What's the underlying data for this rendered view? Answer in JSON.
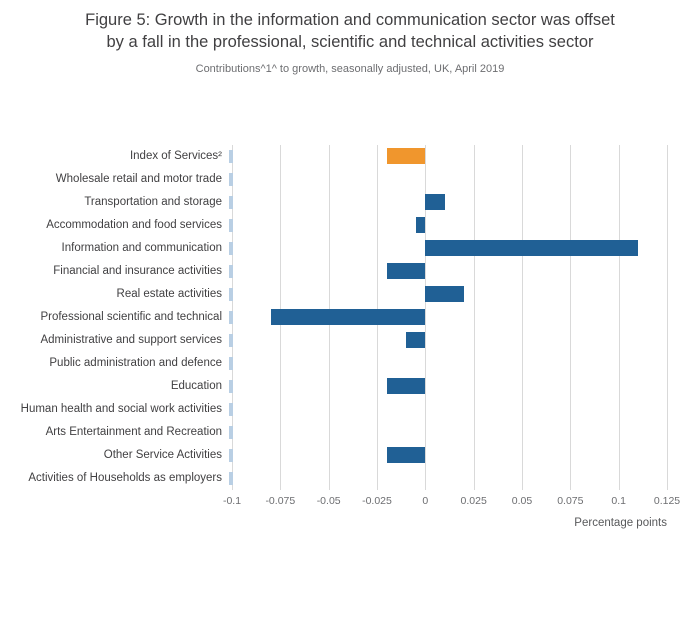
{
  "title": {
    "line1": "Figure 5: Growth in the information and communication sector was offset",
    "line2": "by a fall in the professional, scientific and technical activities sector"
  },
  "subtitle": "Contributions^1^ to growth, seasonally adjusted, UK, April 2019",
  "chart_data": {
    "type": "bar",
    "orientation": "horizontal",
    "title": "Figure 5: Growth in the information and communication sector was offset by a fall in the professional, scientific and technical activities sector",
    "subtitle": "Contributions^1^ to growth, seasonally adjusted, UK, April 2019",
    "xlabel": "Percentage points",
    "xlim": [
      -0.1,
      0.125
    ],
    "x_ticks": [
      -0.1,
      -0.075,
      -0.05,
      -0.025,
      0,
      0.025,
      0.05,
      0.075,
      0.1,
      0.125
    ],
    "x_tick_labels": [
      "-0.1",
      "-0.075",
      "-0.05",
      "-0.025",
      "0",
      "0.025",
      "0.05",
      "0.075",
      "0.1",
      "0.125"
    ],
    "grid": true,
    "legend": "none",
    "categories": [
      "Index of Services²",
      "Wholesale retail and motor trade",
      "Transportation and storage",
      "Accommodation and food services",
      "Information and communication",
      "Financial and insurance activities",
      "Real estate activities",
      "Professional scientific and technical",
      "Administrative and support services",
      "Public administration and defence",
      "Education",
      "Human health and social work activities",
      "Arts Entertainment and Recreation",
      "Other Service Activities",
      "Activities of Households as employers"
    ],
    "values": [
      -0.02,
      0,
      0.01,
      -0.005,
      0.11,
      -0.02,
      0.02,
      -0.08,
      -0.01,
      0,
      -0.02,
      0,
      0,
      -0.02,
      0
    ],
    "colors": {
      "default": "#206095",
      "highlight": "#f0962d"
    },
    "highlight_index": 0
  }
}
